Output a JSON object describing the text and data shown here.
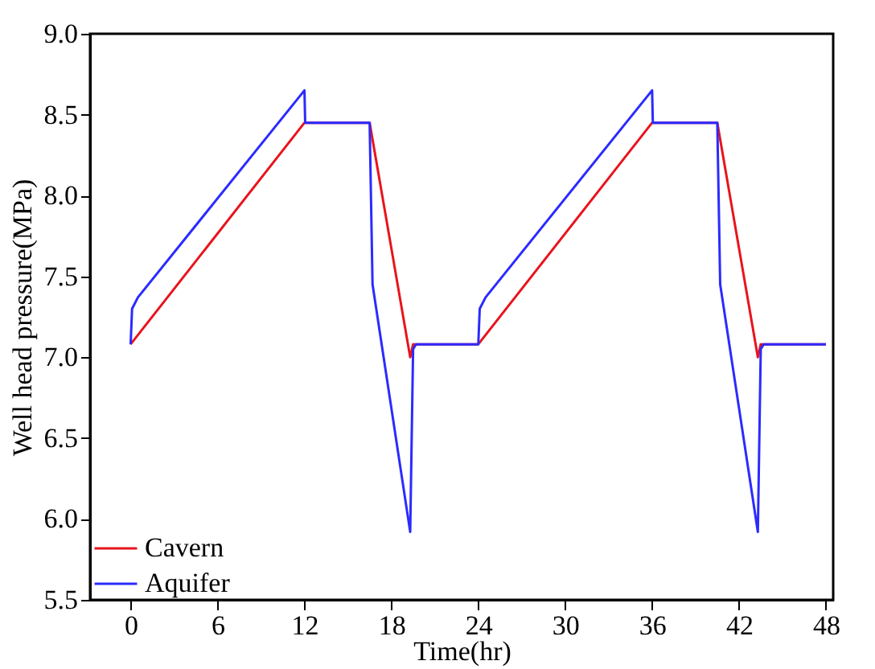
{
  "chart_data": {
    "type": "line",
    "xlabel": "Time(hr)",
    "ylabel": "Well head pressure(MPa)",
    "xlim": [
      -2.8,
      48.5
    ],
    "xticks": [
      0,
      6,
      12,
      18,
      24,
      30,
      36,
      42,
      48
    ],
    "ylim": [
      5.5,
      9.0
    ],
    "yticks": [
      {
        "value": 5.5,
        "label": "5.5"
      },
      {
        "value": 6.0,
        "label": "6.0"
      },
      {
        "value": 6.5,
        "label": "6.5"
      },
      {
        "value": 7.0,
        "label": "7.0"
      },
      {
        "value": 7.5,
        "label": "7.5"
      },
      {
        "value": 8.0,
        "label": "8.0"
      },
      {
        "value": 8.5,
        "label": "8.5"
      },
      {
        "value": 9.0,
        "label": "9.0"
      }
    ],
    "grid": false,
    "legend": "bottom left",
    "marker": "none",
    "line_style": "solid",
    "series": [
      {
        "name": "Cavern",
        "color": "#e8141c",
        "x": [
          0,
          12,
          16.5,
          19.3,
          19.5,
          24,
          36,
          40.5,
          43.3,
          43.5,
          48
        ],
        "values": [
          7.08,
          8.45,
          8.45,
          7.0,
          7.08,
          7.08,
          8.45,
          8.45,
          7.0,
          7.08,
          7.08
        ]
      },
      {
        "name": "Aquifer",
        "color": "#2b2bff",
        "x": [
          0,
          0.1,
          0.5,
          12,
          12.05,
          16.5,
          16.7,
          19.3,
          19.5,
          19.7,
          24,
          24.1,
          24.5,
          36,
          36.05,
          40.5,
          40.7,
          43.3,
          43.5,
          43.7,
          48
        ],
        "values": [
          7.08,
          7.3,
          7.37,
          8.65,
          8.45,
          8.45,
          7.45,
          5.92,
          7.05,
          7.08,
          7.08,
          7.3,
          7.37,
          8.65,
          8.45,
          8.45,
          7.45,
          5.92,
          7.05,
          7.08,
          7.08
        ]
      }
    ]
  }
}
